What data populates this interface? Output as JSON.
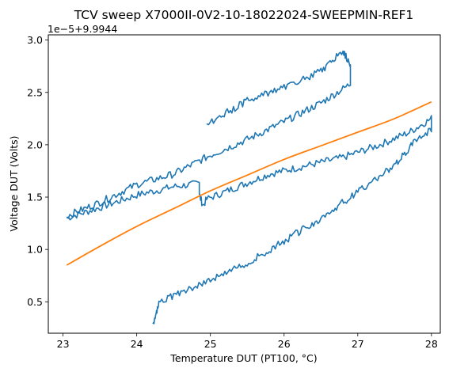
{
  "chart_data": {
    "type": "line",
    "title": "TCV sweep X7000II-0V2-10-18022024-SWEEPMIN-REF1",
    "xlabel": "Temperature DUT (PT100, °C)",
    "ylabel": "Voltage DUT (Volts)",
    "y_offset_text": "1e−5+9.9944",
    "xlim": [
      22.8,
      28.12
    ],
    "ylim": [
      0.2,
      3.05
    ],
    "x_ticks": [
      23,
      24,
      25,
      26,
      27,
      28
    ],
    "x_tick_labels": [
      "23",
      "24",
      "25",
      "26",
      "27",
      "28"
    ],
    "y_ticks": [
      0.5,
      1.0,
      1.5,
      2.0,
      2.5,
      3.0
    ],
    "y_tick_labels": [
      "0.5",
      "1.0",
      "1.5",
      "2.0",
      "2.5",
      "3.0"
    ],
    "grid": false,
    "colors": {
      "measured": "#1f77b4",
      "fit": "#ff7f0e"
    },
    "series": [
      {
        "color": "#1f77b4",
        "style": "noisy",
        "points": [
          [
            23.05,
            1.3
          ],
          [
            23.5,
            1.4
          ],
          [
            24.0,
            1.52
          ],
          [
            24.5,
            1.6
          ],
          [
            24.85,
            1.63
          ],
          [
            24.85,
            1.52
          ],
          [
            24.9,
            1.42
          ],
          [
            24.95,
            1.48
          ],
          [
            25.3,
            1.58
          ],
          [
            25.8,
            1.72
          ],
          [
            26.3,
            1.8
          ],
          [
            26.8,
            1.88
          ],
          [
            27.3,
            2.0
          ],
          [
            27.7,
            2.12
          ],
          [
            28.0,
            2.25
          ],
          [
            28.0,
            2.15
          ],
          [
            27.8,
            2.05
          ],
          [
            27.5,
            1.8
          ],
          [
            27.0,
            1.55
          ],
          [
            26.5,
            1.3
          ],
          [
            26.0,
            1.08
          ],
          [
            25.5,
            0.87
          ],
          [
            25.0,
            0.71
          ],
          [
            24.6,
            0.6
          ],
          [
            24.3,
            0.48
          ],
          [
            24.25,
            0.35
          ],
          [
            24.22,
            0.29
          ]
        ]
      },
      {
        "color": "#1f77b4",
        "style": "noisy",
        "points": [
          [
            23.05,
            1.32
          ],
          [
            23.5,
            1.45
          ],
          [
            24.0,
            1.62
          ],
          [
            24.5,
            1.72
          ],
          [
            25.0,
            1.9
          ],
          [
            25.5,
            2.05
          ],
          [
            26.0,
            2.22
          ],
          [
            26.5,
            2.4
          ],
          [
            26.9,
            2.58
          ],
          [
            26.9,
            2.75
          ],
          [
            26.8,
            2.9
          ],
          [
            26.5,
            2.7
          ],
          [
            26.0,
            2.55
          ],
          [
            25.5,
            2.42
          ],
          [
            25.0,
            2.22
          ],
          [
            24.95,
            2.2
          ]
        ]
      },
      {
        "color": "#ff7f0e",
        "style": "smooth",
        "points": [
          [
            23.05,
            0.85
          ],
          [
            23.5,
            1.03
          ],
          [
            24.0,
            1.22
          ],
          [
            24.5,
            1.39
          ],
          [
            25.0,
            1.56
          ],
          [
            25.5,
            1.71
          ],
          [
            26.0,
            1.86
          ],
          [
            26.5,
            1.99
          ],
          [
            27.0,
            2.12
          ],
          [
            27.5,
            2.25
          ],
          [
            28.0,
            2.41
          ]
        ]
      }
    ]
  }
}
